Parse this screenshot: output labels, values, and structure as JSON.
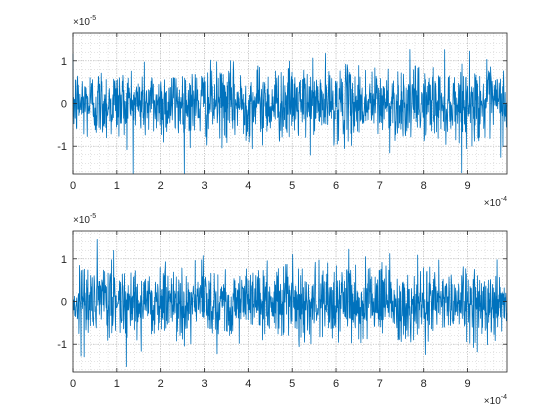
{
  "chart_data": [
    {
      "type": "line",
      "title": "",
      "xlabel": "",
      "ylabel": "",
      "xlim": [
        0,
        9.9
      ],
      "ylim": [
        -1.65,
        1.65
      ],
      "x_ticks": [
        "0",
        "1",
        "2",
        "3",
        "4",
        "5",
        "6",
        "7",
        "8",
        "9"
      ],
      "y_ticks": [
        "-1",
        "0",
        "1"
      ],
      "x_exponent": {
        "base": "×10",
        "power": "-4"
      },
      "y_exponent": {
        "base": "×10",
        "power": "-5"
      },
      "grid": "on (dotted)",
      "line_color": "#0072BD",
      "series_description": "dense random noise, about zero-mean, amplitude roughly ±0.5 to ±1.6 (×10^-5)",
      "num_points": 1400
    },
    {
      "type": "line",
      "title": "",
      "xlabel": "",
      "ylabel": "",
      "xlim": [
        0,
        9.9
      ],
      "ylim": [
        -1.65,
        1.65
      ],
      "x_ticks": [
        "0",
        "1",
        "2",
        "3",
        "4",
        "5",
        "6",
        "7",
        "8",
        "9"
      ],
      "y_ticks": [
        "-1",
        "0",
        "1"
      ],
      "x_exponent": {
        "base": "×10",
        "power": "-4"
      },
      "y_exponent": {
        "base": "×10",
        "power": "-5"
      },
      "grid": "on (dotted)",
      "line_color": "#0072BD",
      "series_description": "dense random noise, about zero-mean, amplitude roughly ±0.5 to ±1.6 (×10^-5)",
      "num_points": 1400
    }
  ]
}
